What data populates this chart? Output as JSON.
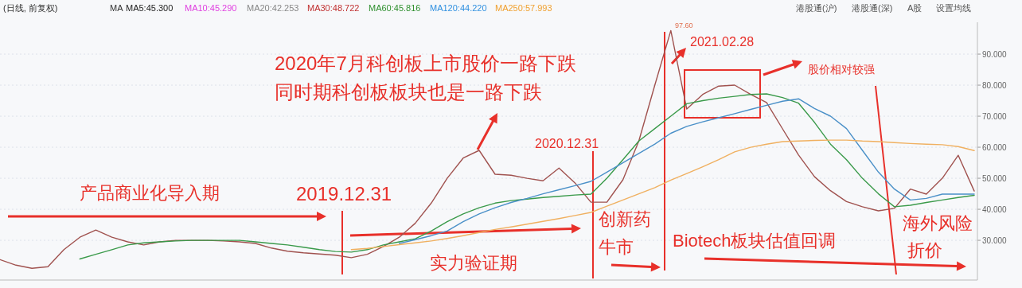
{
  "chart_data": {
    "type": "line",
    "categories": [
      null,
      null,
      null,
      null,
      null,
      null,
      null,
      null,
      null,
      null,
      null,
      null,
      null,
      null,
      null,
      null,
      null,
      null,
      null,
      null,
      null,
      null,
      null,
      null,
      null,
      null,
      null,
      null,
      null,
      null,
      null,
      null,
      null,
      null,
      null,
      null,
      null,
      null,
      null,
      null,
      null,
      null,
      null,
      null,
      null,
      null,
      null,
      null,
      null,
      null,
      null,
      null,
      null,
      null,
      null,
      null,
      null,
      null,
      null,
      null,
      null,
      null
    ],
    "ylim": [
      17.2,
      97.7
    ],
    "yticks": [
      {
        "value": 30,
        "label": "30.000"
      },
      {
        "value": 40,
        "label": "40.000"
      },
      {
        "value": 50,
        "label": "50.000"
      },
      {
        "value": 60,
        "label": "60.000"
      },
      {
        "value": 70,
        "label": "70.000"
      },
      {
        "value": 80,
        "label": "80.000"
      },
      {
        "value": 90,
        "label": "90.000"
      }
    ],
    "tick_labels": "y",
    "grid": "y",
    "series": [
      {
        "color": "#a0524f",
        "values": [
          23.8,
          22,
          21,
          21.5,
          27,
          31,
          33.3,
          31,
          29.5,
          28.5,
          29.5,
          30,
          30,
          30,
          29.8,
          29.5,
          29,
          27.5,
          26.5,
          26,
          25.6,
          25.2,
          24.4,
          25.5,
          28,
          31,
          35.5,
          42,
          50,
          56.5,
          59,
          51.3,
          51,
          50,
          49.2,
          53.3,
          48.5,
          42.3,
          42.3,
          49.5,
          62,
          80,
          97.6,
          72.3,
          77,
          79.7,
          80,
          77,
          74.4,
          65.9,
          57.5,
          50.5,
          46,
          42.5,
          40.8,
          39.5,
          40.3,
          46.5,
          44.9,
          50,
          57.4,
          45.9
        ]
      },
      {
        "color": "#3a9a4a",
        "values": [
          null,
          null,
          null,
          null,
          null,
          24,
          25.5,
          27,
          28.5,
          29.2,
          29.5,
          29.8,
          30,
          30,
          30,
          30,
          29.5,
          29,
          28.5,
          27.8,
          27,
          26.4,
          26.2,
          27,
          28.5,
          29.5,
          30.5,
          33,
          36,
          38.5,
          40.5,
          42,
          42.8,
          43.3,
          43.8,
          44.2,
          44.6,
          44.9,
          50,
          56,
          62,
          66,
          70,
          74,
          75,
          75.8,
          76.4,
          77,
          77.2,
          76,
          74.2,
          68,
          61,
          56,
          50,
          45,
          40.8,
          41.3,
          42.2,
          43,
          43.8,
          44.5
        ]
      },
      {
        "color": "#4a90c8",
        "values": [
          null,
          null,
          null,
          null,
          null,
          null,
          null,
          null,
          null,
          null,
          null,
          null,
          null,
          null,
          null,
          null,
          null,
          null,
          null,
          null,
          null,
          null,
          null,
          null,
          null,
          29,
          30.2,
          31.5,
          33,
          36,
          38.5,
          40.5,
          42.2,
          43.5,
          45,
          46.3,
          47.6,
          49,
          52,
          55,
          58,
          61,
          64.5,
          66.7,
          68.2,
          69.5,
          70.8,
          72.2,
          73.5,
          74.8,
          75.6,
          72.5,
          70,
          66,
          59,
          52,
          46.5,
          43,
          43.5,
          44.9,
          44.9,
          44.9
        ]
      },
      {
        "color": "#f0b060",
        "values": [
          null,
          null,
          null,
          null,
          null,
          null,
          null,
          null,
          null,
          null,
          null,
          null,
          null,
          null,
          null,
          null,
          null,
          null,
          null,
          null,
          null,
          null,
          27,
          27.4,
          28,
          28.6,
          29.2,
          29.8,
          30.6,
          31.5,
          32.5,
          33.5,
          34.3,
          35.2,
          36.1,
          37,
          38,
          39,
          41,
          43,
          45,
          47,
          49.4,
          51.5,
          53.7,
          56,
          58.5,
          60,
          61,
          61.8,
          62,
          62.2,
          62.3,
          62.3,
          62,
          61.8,
          61.5,
          61.2,
          61,
          60.8,
          60.2,
          58.9
        ]
      }
    ],
    "annotations": [
      "(日线, 前复权)",
      "MA",
      "MA5:45.300",
      "MA10:45.290",
      "MA20:42.253",
      "MA30:48.722",
      "MA60:45.816",
      "MA120:44.220",
      "MA250:57.993",
      "港股通(沪)",
      "港股通(深)",
      "A股",
      "设置均线",
      "产品商业化导入期",
      "2019.12.31",
      "2020年7月科创板上市股价一路下跌",
      "同时期科创板板块也是一路下跌",
      "实力验证期",
      "2020.12.31",
      "创新药",
      "牛市",
      "2021.02.28",
      "股价相对较强",
      "Biotech板块估值回调",
      "海外风险",
      "折价",
      "97.60"
    ]
  }
}
